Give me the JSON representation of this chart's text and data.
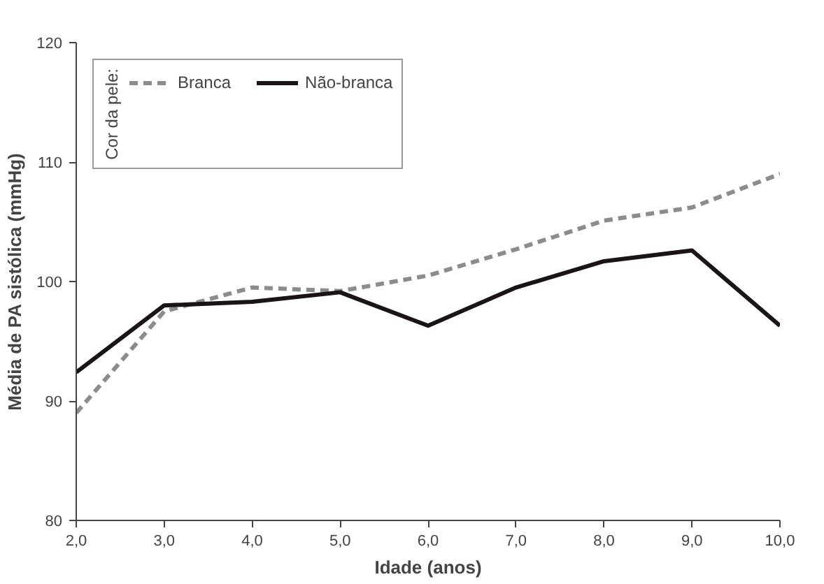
{
  "chart_data": {
    "type": "line",
    "xlabel": "Idade (anos)",
    "ylabel": "Média de PA sistólica (mmHg)",
    "legend_title": "Cor da pele:",
    "x": [
      2,
      3,
      4,
      5,
      6,
      7,
      8,
      9,
      10
    ],
    "xlim": [
      2,
      10
    ],
    "xticks": [
      {
        "value": 2,
        "label": "2,0"
      },
      {
        "value": 3,
        "label": "3,0"
      },
      {
        "value": 4,
        "label": "4,0"
      },
      {
        "value": 5,
        "label": "5,0"
      },
      {
        "value": 6,
        "label": "6,0"
      },
      {
        "value": 7,
        "label": "7,0"
      },
      {
        "value": 8,
        "label": "8,0"
      },
      {
        "value": 9,
        "label": "9,0"
      },
      {
        "value": 10,
        "label": "10,0"
      }
    ],
    "ylim": [
      80,
      120
    ],
    "yticks": [
      80,
      90,
      100,
      110,
      120
    ],
    "grid": false,
    "legend": "top left",
    "marker": "none",
    "series": [
      {
        "name": "Branca",
        "color": "#8c8c8c",
        "line_style": "dashed",
        "values": [
          89.0,
          97.5,
          99.5,
          99.2,
          100.5,
          102.7,
          105.1,
          106.2,
          109.0
        ]
      },
      {
        "name": "Não-branca",
        "color": "#1a1414",
        "line_style": "solid",
        "values": [
          92.4,
          98.0,
          98.3,
          99.1,
          96.3,
          99.5,
          101.7,
          102.6,
          96.3
        ]
      }
    ]
  }
}
